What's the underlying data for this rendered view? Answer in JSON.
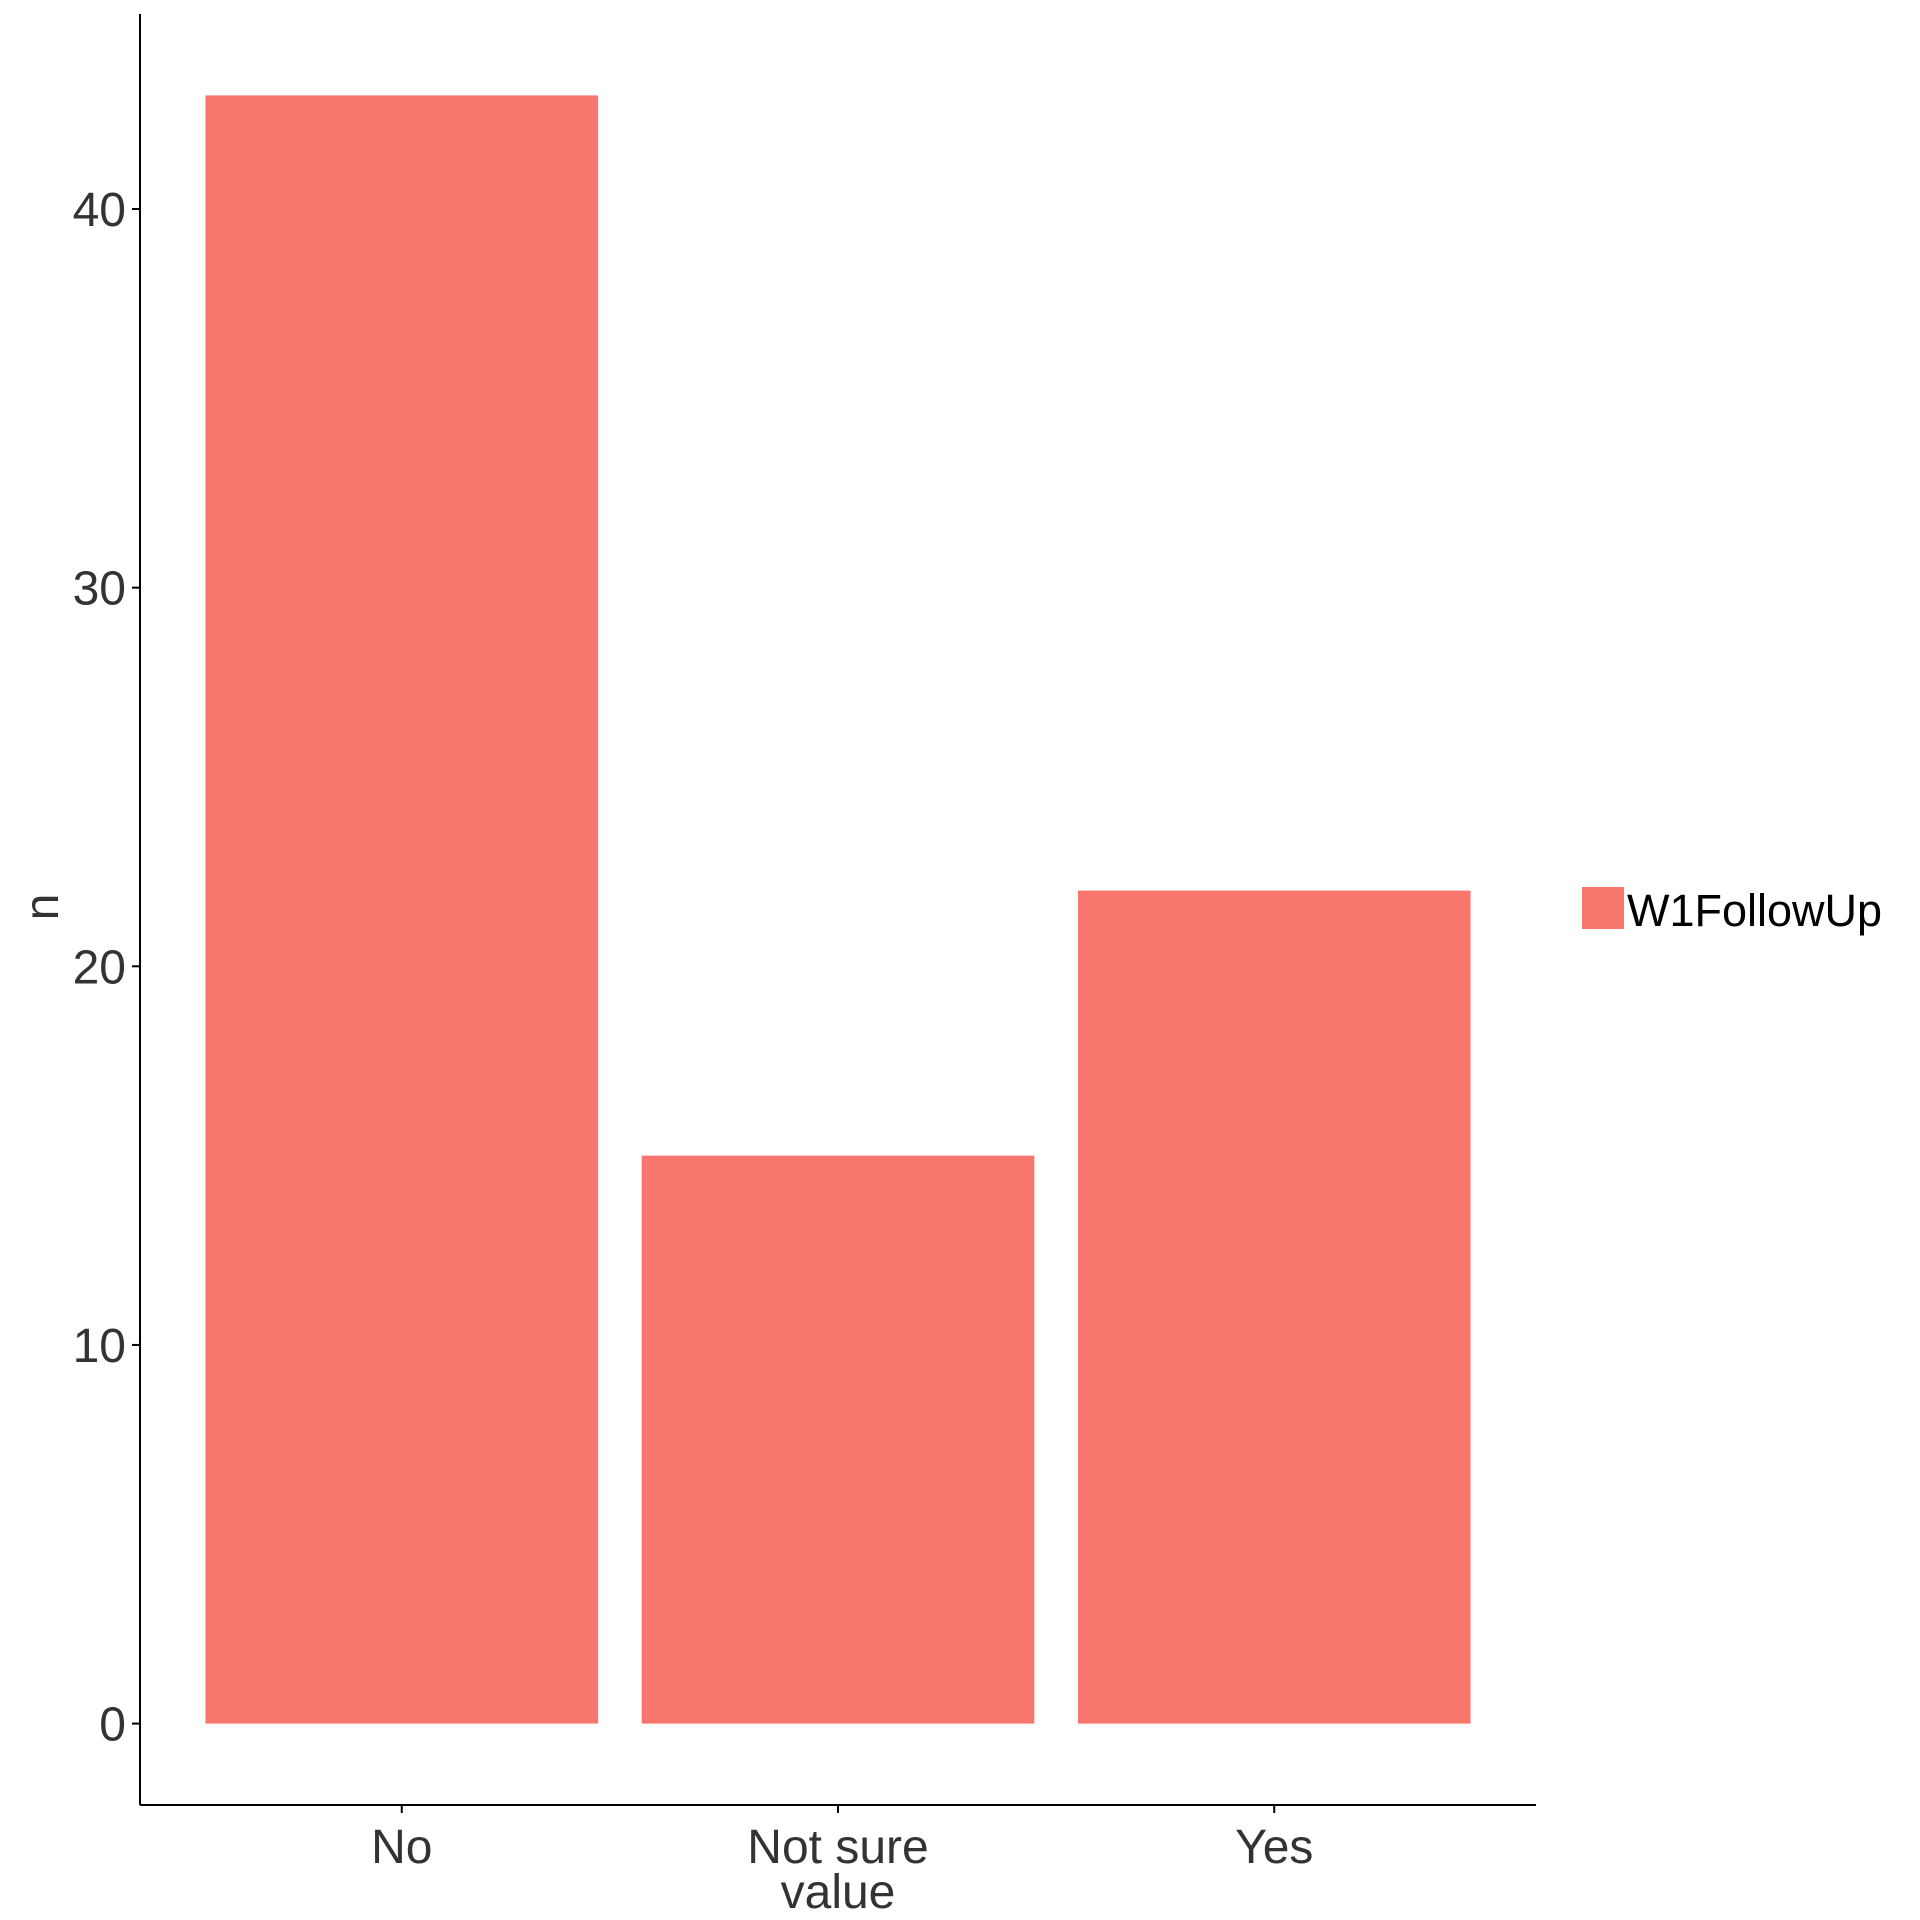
{
  "chart_data": {
    "type": "bar",
    "categories": [
      "No",
      "Not sure",
      "Yes"
    ],
    "series": [
      {
        "name": "W1FollowUp",
        "values": [
          43,
          15,
          22
        ]
      }
    ],
    "xlabel": "value",
    "ylabel": "n",
    "ylim": [
      -2.15,
      45.15
    ],
    "yticks": [
      0,
      10,
      20,
      30,
      40
    ],
    "yticklabels": [
      "0",
      "10",
      "20",
      "30",
      "40"
    ],
    "grid": false,
    "legend_position": "right",
    "colors": {
      "bar": "#F8766D",
      "axis": "#000000",
      "text": "#333333"
    }
  }
}
